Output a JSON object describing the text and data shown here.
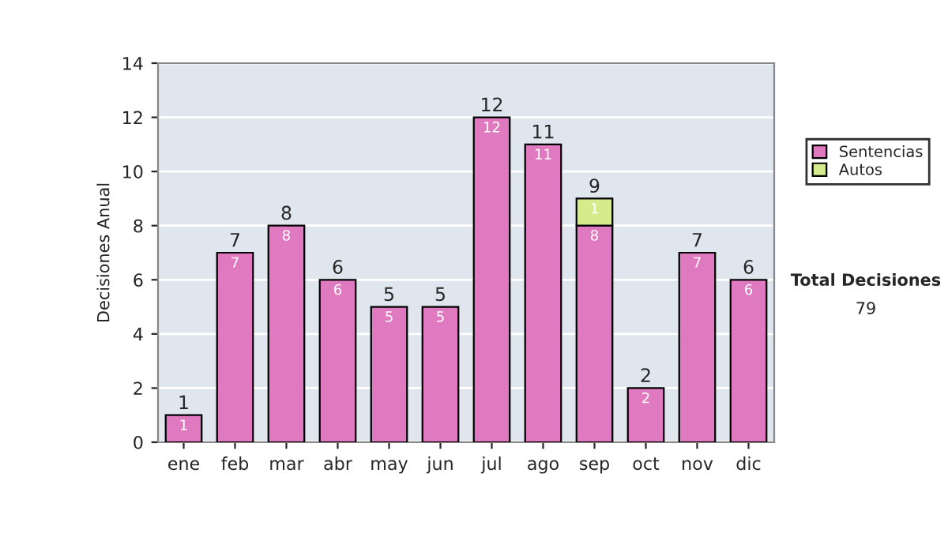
{
  "chart_data": {
    "type": "bar",
    "stacked": true,
    "ylabel": "Decisiones Anual",
    "categories": [
      "ene",
      "feb",
      "mar",
      "abr",
      "may",
      "jun",
      "jul",
      "ago",
      "sep",
      "oct",
      "nov",
      "dic"
    ],
    "series": [
      {
        "name": "Sentencias",
        "color": "#e07ac0",
        "values": [
          1,
          7,
          8,
          6,
          5,
          5,
          12,
          11,
          8,
          2,
          7,
          6
        ]
      },
      {
        "name": "Autos",
        "color": "#d4ec8c",
        "values": [
          null,
          null,
          null,
          null,
          null,
          null,
          null,
          null,
          1,
          null,
          null,
          null
        ]
      }
    ],
    "totals": [
      "1",
      "7",
      "8",
      "6",
      "5",
      "5",
      "12",
      "11",
      "9",
      "2",
      "7",
      "6"
    ],
    "data_labels": true,
    "ylim": [
      0,
      14
    ],
    "yticks": [
      0,
      2,
      4,
      6,
      8,
      10,
      12,
      14
    ],
    "grid": "y",
    "legend": "right",
    "annotations": [
      "Total Decisiones",
      "79"
    ]
  }
}
